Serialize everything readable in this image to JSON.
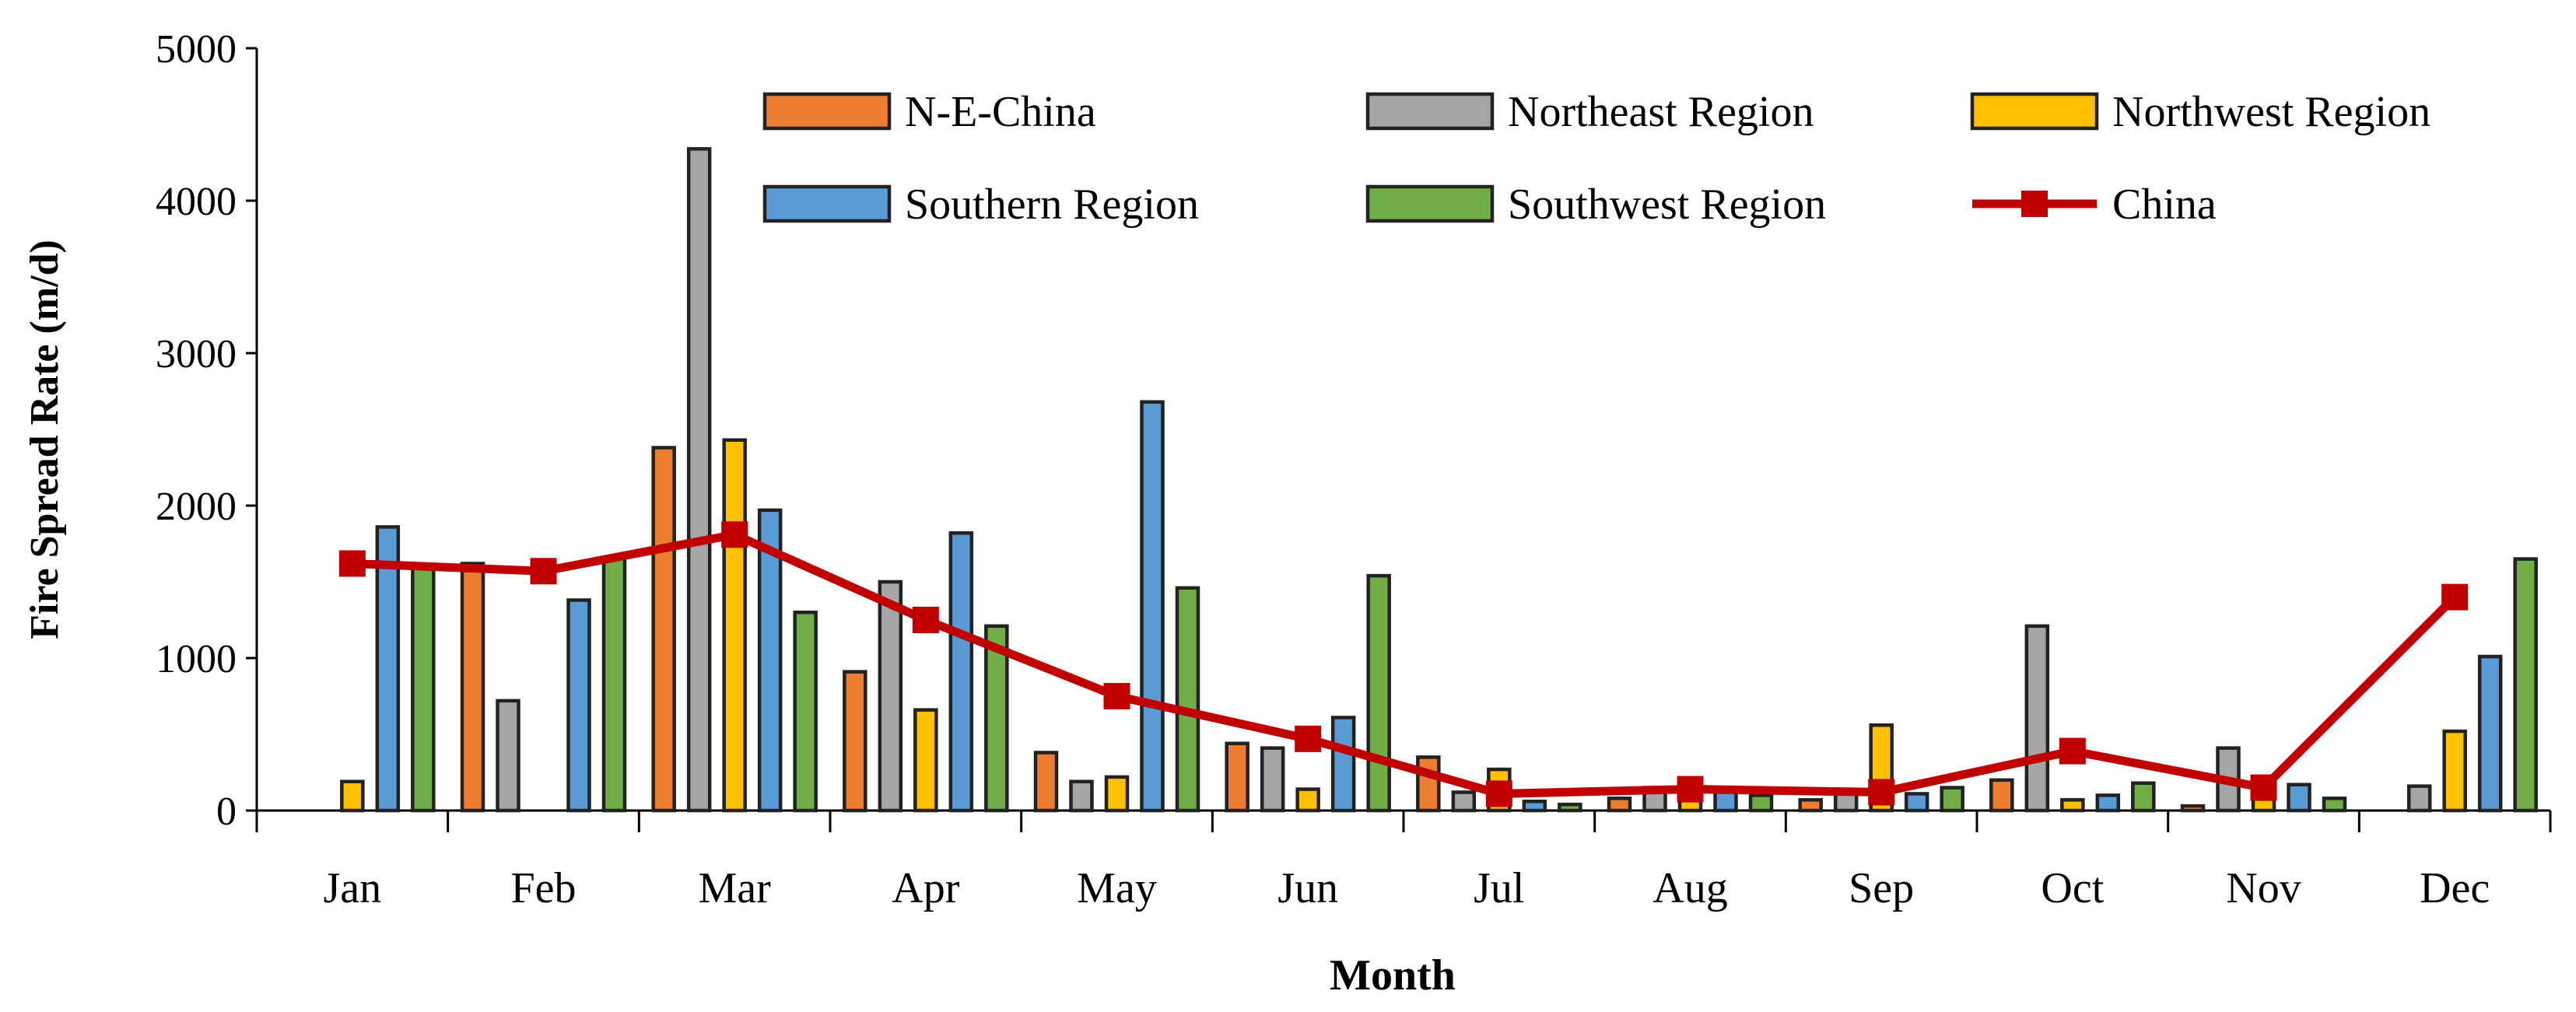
{
  "chart_data": {
    "type": "bar",
    "title": "",
    "xlabel": "Month",
    "ylabel": "Fire Spread Rate (m/d)",
    "ylim": [
      0,
      5000
    ],
    "yticks": [
      0,
      1000,
      2000,
      3000,
      4000,
      5000
    ],
    "grid": false,
    "legend_position": "top-right",
    "categories": [
      "Jan",
      "Feb",
      "Mar",
      "Apr",
      "May",
      "Jun",
      "Jul",
      "Aug",
      "Sep",
      "Oct",
      "Nov",
      "Dec"
    ],
    "series": [
      {
        "name": "N-E-China",
        "kind": "bar",
        "color": "#ED7D31",
        "values": [
          0,
          1620,
          2380,
          910,
          380,
          440,
          350,
          80,
          70,
          200,
          30,
          0
        ]
      },
      {
        "name": "Northeast Region",
        "kind": "bar",
        "color": "#A5A5A5",
        "values": [
          0,
          720,
          4340,
          1500,
          190,
          410,
          120,
          150,
          110,
          1210,
          410,
          160
        ]
      },
      {
        "name": "Northwest Region",
        "kind": "bar",
        "color": "#FFC000",
        "values": [
          190,
          0,
          2430,
          660,
          220,
          140,
          270,
          110,
          560,
          70,
          130,
          520
        ]
      },
      {
        "name": "Southern Region",
        "kind": "bar",
        "color": "#5B9BD5",
        "values": [
          1860,
          1380,
          1970,
          1820,
          2680,
          610,
          60,
          150,
          110,
          100,
          170,
          1010
        ]
      },
      {
        "name": "Southwest Region",
        "kind": "bar",
        "color": "#70AD47",
        "values": [
          1610,
          1660,
          1300,
          1210,
          1460,
          1540,
          40,
          100,
          150,
          180,
          80,
          1650
        ]
      },
      {
        "name": "China",
        "kind": "line",
        "color": "#C00000",
        "values": [
          1620,
          1570,
          1810,
          1250,
          750,
          470,
          110,
          140,
          120,
          390,
          150,
          1400
        ]
      }
    ]
  }
}
